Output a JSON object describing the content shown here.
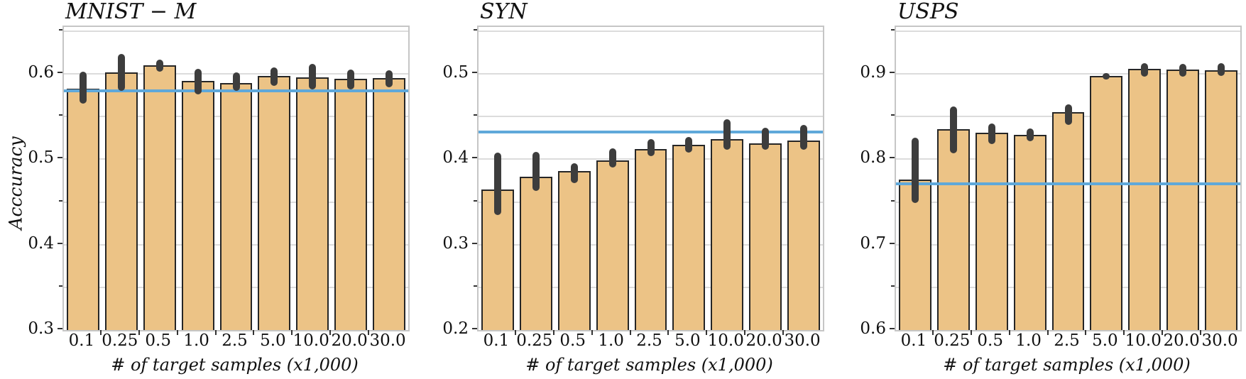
{
  "figure": {
    "ylabel": "Acccuracy",
    "xlabel": "# of target samples (x1,000)",
    "colors": {
      "bar_fill": "#ecc386",
      "bar_edge": "#262626",
      "error": "#3d3d3d",
      "baseline": "#5fa8da",
      "grid": "#dcdcdc",
      "spine": "#c6c6c6",
      "tick": "#333333",
      "text": "#111111"
    }
  },
  "chart_data": [
    {
      "type": "bar",
      "title": "MNIST − M",
      "categories": [
        "0.1",
        "0.25",
        "0.5",
        "1.0",
        "2.5",
        "5.0",
        "10.0",
        "20.0",
        "30.0"
      ],
      "series": [
        {
          "name": "accuracy",
          "values": [
            0.583,
            0.602,
            0.61,
            0.592,
            0.589,
            0.598,
            0.596,
            0.594,
            0.595
          ]
        }
      ],
      "error_low": [
        0.565,
        0.58,
        0.603,
        0.576,
        0.58,
        0.586,
        0.582,
        0.582,
        0.584
      ],
      "error_high": [
        0.603,
        0.623,
        0.617,
        0.606,
        0.602,
        0.608,
        0.612,
        0.605,
        0.604
      ],
      "baseline": 0.58,
      "xlabel": "# of target samples (x1,000)",
      "ylabel": "Acccuracy",
      "ylim": [
        0.3,
        0.655
      ],
      "yticks": [
        0.6,
        0.5,
        0.4,
        0.3
      ],
      "grid_step": 0.05,
      "grid": true,
      "legend": "none"
    },
    {
      "type": "bar",
      "title": "SYN",
      "categories": [
        "0.1",
        "0.25",
        "0.5",
        "1.0",
        "2.5",
        "5.0",
        "10.0",
        "20.0",
        "30.0"
      ],
      "series": [
        {
          "name": "accuracy",
          "values": [
            0.365,
            0.38,
            0.386,
            0.399,
            0.412,
            0.417,
            0.424,
            0.419,
            0.422
          ]
        }
      ],
      "error_low": [
        0.335,
        0.363,
        0.372,
        0.39,
        0.404,
        0.408,
        0.411,
        0.411,
        0.411
      ],
      "error_high": [
        0.408,
        0.409,
        0.395,
        0.413,
        0.424,
        0.426,
        0.447,
        0.437,
        0.44
      ],
      "baseline": 0.432,
      "xlabel": "# of target samples (x1,000)",
      "ylabel": "Acccuracy",
      "ylim": [
        0.2,
        0.555
      ],
      "yticks": [
        0.5,
        0.4,
        0.3,
        0.2
      ],
      "grid_step": 0.05,
      "grid": true,
      "legend": "none"
    },
    {
      "type": "bar",
      "title": "USPS",
      "categories": [
        "0.1",
        "0.25",
        "0.5",
        "1.0",
        "2.5",
        "5.0",
        "10.0",
        "20.0",
        "30.0"
      ],
      "series": [
        {
          "name": "accuracy",
          "values": [
            0.776,
            0.835,
            0.831,
            0.829,
            0.855,
            0.898,
            0.906,
            0.905,
            0.904
          ]
        }
      ],
      "error_low": [
        0.749,
        0.807,
        0.818,
        0.821,
        0.84,
        0.896,
        0.897,
        0.897,
        0.898
      ],
      "error_high": [
        0.825,
        0.862,
        0.842,
        0.836,
        0.864,
        0.901,
        0.913,
        0.912,
        0.913
      ],
      "baseline": 0.771,
      "xlabel": "# of target samples (x1,000)",
      "ylabel": "Acccuracy",
      "ylim": [
        0.6,
        0.955
      ],
      "yticks": [
        0.9,
        0.8,
        0.7,
        0.6
      ],
      "grid_step": 0.05,
      "grid": true,
      "legend": "none"
    }
  ]
}
